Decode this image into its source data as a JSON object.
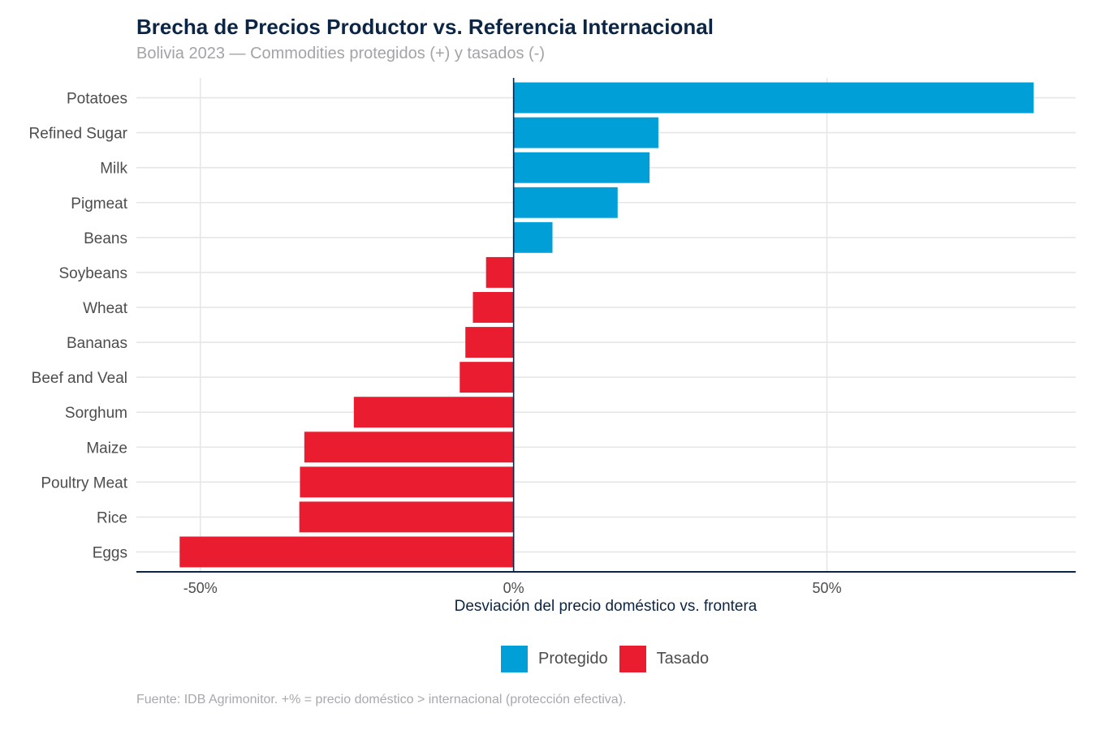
{
  "chart_data": {
    "type": "bar",
    "orientation": "horizontal",
    "title": "Brecha de Precios Productor vs. Referencia Internacional",
    "subtitle": "Bolivia 2023 — Commodities protegidos (+) y tasados (-)",
    "xlabel": "Desviación del precio doméstico vs. frontera",
    "ylabel": "",
    "caption": "Fuente: IDB Agrimonitor. +% = precio doméstico > internacional (protección efectiva).",
    "categories": [
      "Potatoes",
      "Refined Sugar",
      "Milk",
      "Pigmeat",
      "Beans",
      "Soybeans",
      "Wheat",
      "Bananas",
      "Beef and Veal",
      "Sorghum",
      "Maize",
      "Poultry Meat",
      "Rice",
      "Eggs"
    ],
    "values": [
      83.0,
      23.1,
      21.7,
      16.6,
      6.2,
      -4.4,
      -6.5,
      -7.7,
      -8.6,
      -25.5,
      -33.4,
      -34.1,
      -34.2,
      -53.3
    ],
    "value_unit": "%",
    "xlim": [
      -60.2,
      89.7
    ],
    "xticks": [
      -50,
      0,
      50
    ],
    "xtick_labels": [
      "-50%",
      "0%",
      "50%"
    ],
    "grid": true,
    "legend": {
      "position": "bottom",
      "entries": [
        {
          "label": "Protegido",
          "color": "#009fd8",
          "rule": "value > 0"
        },
        {
          "label": "Tasado",
          "color": "#ea1c2f",
          "rule": "value < 0"
        }
      ]
    },
    "colors": {
      "positive": "#009fd8",
      "negative": "#ea1c2f",
      "zero_line": "#0b2545",
      "axis_line": "#0b2545",
      "grid": "#e6e6e6",
      "title": "#0b2545"
    }
  }
}
